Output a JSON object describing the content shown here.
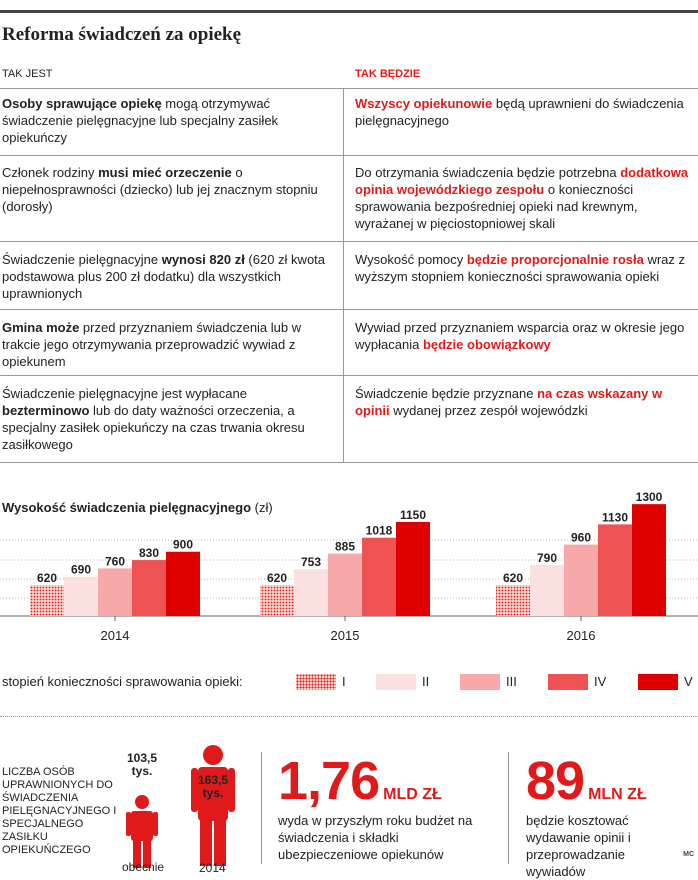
{
  "title": "Reforma świadczeń za opiekę",
  "columns": {
    "left": "TAK JEST",
    "right": "TAK BĘDZIE"
  },
  "rows": [
    {
      "left": [
        {
          "t": "Osoby sprawujące opiekę",
          "s": "b"
        },
        {
          "t": " mogą otrzymywać świadczenie pielęgnacyjne lub specjalny zasiłek opiekuńczy"
        }
      ],
      "right": [
        {
          "t": "Wszyscy opiekunowie",
          "s": "r"
        },
        {
          "t": " będą uprawnieni do świadczenia pielęgnacyjnego"
        }
      ]
    },
    {
      "left": [
        {
          "t": "Członek rodziny "
        },
        {
          "t": "musi mieć orzeczenie",
          "s": "b"
        },
        {
          "t": " o niepełnosprawności (dziecko) lub jej znacznym stopniu (dorosły)"
        }
      ],
      "right": [
        {
          "t": "Do otrzymania świadczenia będzie potrzebna "
        },
        {
          "t": "dodatkowa opinia wojewódzkiego zespołu",
          "s": "r"
        },
        {
          "t": " o konieczności sprawowania bezpośredniej opieki nad krewnym, wyrażanej w pięciostopniowej skali"
        }
      ]
    },
    {
      "left": [
        {
          "t": "Świadczenie pielęgnacyjne "
        },
        {
          "t": "wynosi 820 zł",
          "s": "b"
        },
        {
          "t": " (620 zł kwota podstawowa plus 200 zł dodatku) dla wszystkich uprawnionych"
        }
      ],
      "right": [
        {
          "t": "Wysokość pomocy "
        },
        {
          "t": "będzie proporcjonalnie rosła",
          "s": "r"
        },
        {
          "t": " wraz z wyższym stopniem konieczności sprawowania opieki"
        }
      ]
    },
    {
      "left": [
        {
          "t": "Gmina może",
          "s": "b"
        },
        {
          "t": " przed przyznaniem świadczenia lub w trakcie jego otrzymywania przeprowadzić wywiad z opiekunem"
        }
      ],
      "right": [
        {
          "t": "Wywiad przed przyznaniem wsparcia oraz w okresie jego wypłacania "
        },
        {
          "t": "będzie obowiązkowy",
          "s": "r"
        }
      ]
    },
    {
      "left": [
        {
          "t": "Świadczenie pielęgnacyjne jest wypłacane "
        },
        {
          "t": "bezterminowo",
          "s": "b"
        },
        {
          "t": " lub do daty ważności orzeczenia, a specjalny zasiłek opiekuńczy na czas trwania okresu zasiłkowego"
        }
      ],
      "right": [
        {
          "t": "Świadczenie będzie przyznane "
        },
        {
          "t": "na czas wskazany w opinii",
          "s": "r"
        },
        {
          "t": " wydanej przez zespół wojewódzki"
        }
      ]
    }
  ],
  "chart_data": {
    "type": "bar",
    "title_bold": "Wysokość świadczenia pielęgnacyjnego",
    "title_unit": "(zł)",
    "categories": [
      "2014",
      "2015",
      "2016"
    ],
    "series": [
      {
        "name": "I",
        "color": "#e01a1a",
        "pattern": "dots",
        "values": [
          620,
          620,
          620
        ]
      },
      {
        "name": "II",
        "color": "#fbe0e0",
        "values": [
          690,
          753,
          790
        ]
      },
      {
        "name": "III",
        "color": "#f7a8a8",
        "values": [
          760,
          885,
          960
        ]
      },
      {
        "name": "IV",
        "color": "#ef5252",
        "values": [
          830,
          1018,
          1130
        ]
      },
      {
        "name": "V",
        "color": "#e00000",
        "values": [
          900,
          1150,
          1300
        ]
      }
    ],
    "ylim": [
      0,
      1400
    ],
    "legend_title": "stopień konieczności sprawowania opieki:"
  },
  "bottom": {
    "osoby_label": "LICZBA OSÓB UPRAWNIONYCH DO ŚWIADCZENIA PIELĘGNACYJNEGO I SPECJALNEGO ZASIŁKU OPIEKUŃCZEGO",
    "fig_now_value": "103,5",
    "fig_now_unit": "tys.",
    "fig_now_label": "obecnie",
    "fig_2014_value": "163,5",
    "fig_2014_unit": "tys.",
    "fig_2014_label": "2014",
    "stat1_value": "1,76",
    "stat1_unit": "MLD ZŁ",
    "stat1_text": "wyda w przyszłym roku budżet na świadczenia i składki ubezpieczeniowe opiekunów",
    "stat2_value": "89",
    "stat2_unit": "MLN ZŁ",
    "stat2_text": "będzie kosztować wydawanie opinii i przeprowadzanie wywiadów",
    "credit": "MC"
  }
}
